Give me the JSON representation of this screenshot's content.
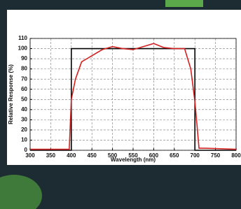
{
  "chart_data": {
    "type": "line",
    "x_label": "Wavelength (nm)",
    "y_label": "Relative Response (%)",
    "xlim": [
      300,
      800
    ],
    "xticks": [
      300,
      350,
      400,
      450,
      500,
      550,
      600,
      650,
      700,
      750,
      800
    ],
    "ylim": [
      0,
      110
    ],
    "yticks": [
      0,
      10,
      20,
      30,
      40,
      50,
      60,
      70,
      80,
      90,
      100,
      110
    ],
    "grid": true,
    "series": [
      {
        "color": "#000000",
        "x": [
          300,
          400,
          400,
          700,
          700,
          800
        ],
        "values": [
          0,
          0,
          100,
          100,
          0,
          0
        ]
      },
      {
        "color": "#d42020",
        "x": [
          300,
          395,
          400,
          410,
          425,
          450,
          475,
          500,
          525,
          550,
          575,
          600,
          625,
          650,
          675,
          690,
          700,
          710,
          725,
          800
        ],
        "values": [
          1,
          1,
          50,
          70,
          87,
          93,
          99,
          102,
          100,
          99,
          102,
          105,
          101,
          100,
          100,
          80,
          48,
          2,
          2,
          1
        ]
      }
    ]
  }
}
